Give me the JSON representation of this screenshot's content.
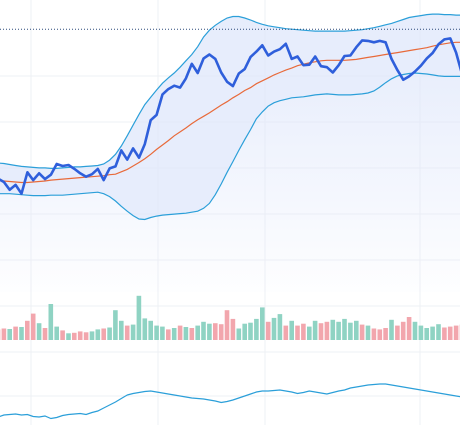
{
  "colors": {
    "price": "#2f5fdb",
    "moving_average": "#e86a3a",
    "bands": "#2b9fd9",
    "band_fill": "#dfe7fb",
    "volume_up": "#8fd3c3",
    "volume_down": "#f2a6ad",
    "indicator": "#2b9fd9",
    "grid": "#eef0f4",
    "reference_line": "#2d4a7a"
  },
  "chart_data": {
    "type": "line",
    "title": "",
    "xlabel": "",
    "ylabel": "",
    "grid": true,
    "legend": "none",
    "x": [
      0,
      1,
      2,
      3,
      4,
      5,
      6,
      7,
      8,
      9,
      10,
      11,
      12,
      13,
      14,
      15,
      16,
      17,
      18,
      19,
      20,
      21,
      22,
      23,
      24,
      25,
      26,
      27,
      28,
      29,
      30,
      31,
      32,
      33,
      34,
      35,
      36,
      37,
      38,
      39,
      40,
      41,
      42,
      43,
      44,
      45,
      46,
      47,
      48,
      49,
      50,
      51,
      52,
      53,
      54,
      55,
      56,
      57,
      58,
      59,
      60,
      61,
      62,
      63,
      64,
      65,
      66,
      67,
      68,
      69,
      70,
      71,
      72,
      73,
      74,
      75,
      76,
      77,
      78,
      79
    ],
    "price_panel": {
      "ylim": [
        0,
        100
      ],
      "reference_line": 94,
      "price": [
        63.3,
        62.6,
        61.0,
        62.0,
        60.2,
        64.6,
        63.0,
        64.4,
        63.2,
        64.1,
        66.3,
        65.9,
        66.1,
        65.3,
        64.4,
        63.7,
        64.2,
        65.3,
        63.0,
        65.4,
        65.8,
        69.1,
        67.2,
        69.5,
        67.6,
        70.4,
        75.3,
        76.4,
        80.6,
        81.7,
        82.4,
        82.0,
        83.9,
        86.9,
        85.0,
        88.0,
        88.8,
        87.9,
        85.1,
        83.2,
        82.3,
        84.9,
        85.8,
        88.3,
        89.4,
        90.7,
        88.6,
        89.4,
        89.9,
        91.0,
        87.9,
        88.4,
        86.6,
        86.7,
        88.4,
        86.4,
        86.2,
        85.1,
        86.6,
        88.5,
        88.6,
        90.3,
        91.7,
        91.6,
        91.3,
        91.6,
        91.3,
        87.9,
        85.6,
        83.6,
        84.3,
        85.3,
        86.5,
        88.0,
        89.1,
        90.9,
        91.9,
        92.1,
        89.2,
        84.8
      ],
      "moving_average": [
        62.9,
        62.8,
        62.7,
        62.6,
        62.5,
        62.5,
        62.6,
        62.7,
        62.8,
        63.0,
        63.1,
        63.2,
        63.3,
        63.4,
        63.5,
        63.6,
        63.7,
        63.8,
        63.9,
        64.1,
        64.2,
        64.7,
        65.2,
        65.9,
        66.6,
        67.4,
        68.3,
        69.3,
        70.2,
        71.1,
        72.1,
        72.9,
        73.7,
        74.6,
        75.4,
        76.1,
        76.8,
        77.6,
        78.4,
        79.1,
        79.9,
        80.6,
        81.4,
        82.0,
        82.8,
        83.4,
        84.0,
        84.6,
        85.1,
        85.6,
        86.0,
        86.5,
        86.8,
        87.1,
        87.3,
        87.5,
        87.6,
        87.6,
        87.6,
        87.6,
        87.7,
        87.8,
        88.0,
        88.2,
        88.4,
        88.6,
        88.8,
        89.0,
        89.2,
        89.4,
        89.6,
        89.8,
        90.0,
        90.2,
        90.5,
        90.8,
        91.0,
        91.2,
        91.3,
        91.3
      ],
      "upper_band": [
        66.5,
        66.4,
        66.2,
        66.0,
        65.8,
        65.7,
        65.6,
        65.5,
        65.5,
        65.4,
        65.4,
        65.5,
        65.6,
        65.7,
        65.7,
        65.8,
        65.9,
        66.0,
        66.3,
        67.1,
        68.3,
        70.0,
        72.1,
        74.3,
        76.5,
        78.5,
        80.0,
        81.5,
        82.9,
        84.0,
        85.0,
        86.2,
        87.5,
        88.8,
        90.4,
        92.4,
        93.8,
        94.8,
        95.6,
        96.3,
        96.6,
        96.6,
        96.3,
        95.9,
        95.4,
        95.0,
        94.7,
        94.5,
        94.3,
        94.1,
        94.0,
        93.9,
        93.8,
        93.7,
        93.6,
        93.6,
        93.6,
        93.6,
        93.6,
        93.6,
        93.7,
        93.8,
        93.9,
        94.1,
        94.3,
        94.6,
        94.9,
        95.2,
        95.6,
        96.0,
        96.4,
        96.6,
        96.8,
        97.0,
        97.1,
        97.1,
        97.0,
        97.0,
        96.9,
        96.9
      ],
      "lower_band": [
        60.2,
        60.2,
        60.2,
        60.1,
        60.0,
        59.9,
        59.8,
        59.8,
        59.8,
        59.9,
        59.9,
        59.9,
        60.0,
        60.1,
        60.2,
        60.3,
        60.4,
        60.5,
        60.2,
        59.6,
        58.7,
        57.6,
        56.6,
        55.7,
        55.0,
        54.9,
        55.3,
        55.6,
        55.8,
        55.9,
        56.0,
        56.1,
        56.2,
        56.4,
        56.6,
        57.2,
        58.2,
        60.0,
        62.2,
        64.6,
        66.8,
        69.1,
        71.3,
        73.4,
        75.6,
        77.0,
        78.2,
        78.9,
        79.3,
        79.6,
        79.9,
        80.0,
        80.1,
        80.3,
        80.5,
        80.6,
        80.7,
        80.6,
        80.5,
        80.5,
        80.5,
        80.6,
        80.7,
        80.9,
        81.3,
        82.1,
        83.0,
        83.8,
        84.4,
        84.7,
        84.9,
        85.0,
        84.9,
        84.8,
        84.6,
        84.4,
        84.3,
        84.3,
        84.3,
        84.3
      ]
    },
    "volume_panel": {
      "ylim": [
        0,
        100
      ],
      "volume": [
        22,
        24,
        23,
        28,
        27,
        40,
        55,
        35,
        25,
        75,
        28,
        20,
        14,
        15,
        18,
        16,
        18,
        22,
        24,
        26,
        62,
        40,
        30,
        32,
        92,
        45,
        40,
        30,
        28,
        22,
        25,
        30,
        27,
        25,
        30,
        38,
        34,
        35,
        33,
        62,
        44,
        24,
        34,
        36,
        44,
        68,
        38,
        46,
        54,
        30,
        40,
        30,
        34,
        28,
        40,
        35,
        38,
        42,
        38,
        44,
        36,
        40,
        32,
        30,
        24,
        22,
        25,
        42,
        30,
        38,
        48,
        38,
        30,
        25,
        28,
        33,
        26,
        28,
        30,
        32
      ],
      "direction": [
        "down",
        "down",
        "up",
        "down",
        "up",
        "down",
        "down",
        "up",
        "down",
        "up",
        "up",
        "down",
        "up",
        "down",
        "down",
        "down",
        "up",
        "up",
        "down",
        "up",
        "up",
        "up",
        "down",
        "up",
        "up",
        "up",
        "up",
        "up",
        "up",
        "down",
        "up",
        "down",
        "up",
        "down",
        "up",
        "up",
        "up",
        "down",
        "down",
        "down",
        "down",
        "up",
        "up",
        "up",
        "up",
        "up",
        "down",
        "up",
        "up",
        "down",
        "up",
        "down",
        "down",
        "up",
        "up",
        "down",
        "down",
        "up",
        "up",
        "up",
        "up",
        "up",
        "down",
        "up",
        "down",
        "down",
        "down",
        "up",
        "down",
        "down",
        "down",
        "up",
        "up",
        "up",
        "up",
        "up",
        "down",
        "down",
        "down",
        "down"
      ]
    },
    "indicator_panel": {
      "ylim": [
        0,
        100
      ],
      "values": [
        18,
        22,
        23,
        24,
        22,
        23,
        19,
        18,
        20,
        15,
        17,
        21,
        23,
        24,
        25,
        23,
        27,
        30,
        36,
        42,
        48,
        55,
        62,
        65,
        67,
        69,
        70,
        68,
        66,
        64,
        62,
        60,
        58,
        56,
        55,
        54,
        52,
        50,
        47,
        49,
        52,
        56,
        60,
        64,
        68,
        70,
        70,
        71,
        72,
        70,
        68,
        65,
        67,
        70,
        68,
        66,
        64,
        67,
        70,
        72,
        76,
        78,
        80,
        82,
        83,
        84,
        84,
        82,
        80,
        78,
        76,
        74,
        72,
        70,
        68,
        66,
        64,
        62,
        60,
        58
      ]
    }
  }
}
